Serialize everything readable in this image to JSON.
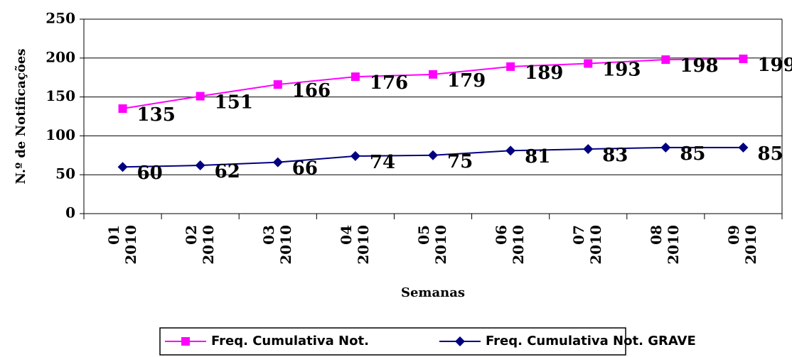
{
  "chart_data": {
    "type": "line",
    "y_label": "N.º de Notificações",
    "x_label": "Semanas",
    "categories": [
      "01\n2010",
      "02\n2010",
      "03\n2010",
      "04\n2010",
      "05\n2010",
      "06\n2010",
      "07\n2010",
      "08\n2010",
      "09\n2010"
    ],
    "series": [
      {
        "name": "Freq. Cumulativa Not.",
        "color": "#ff00ff",
        "marker": "square",
        "values": [
          135,
          151,
          166,
          176,
          179,
          189,
          193,
          198,
          199
        ]
      },
      {
        "name": "Freq. Cumulativa Not. GRAVE",
        "color": "#000080",
        "marker": "diamond",
        "values": [
          60,
          62,
          66,
          74,
          75,
          81,
          83,
          85,
          85
        ]
      }
    ],
    "ylim": [
      0,
      250
    ],
    "yticks": [
      0,
      50,
      100,
      150,
      200,
      250
    ],
    "grid": true,
    "legend": "bottom"
  }
}
